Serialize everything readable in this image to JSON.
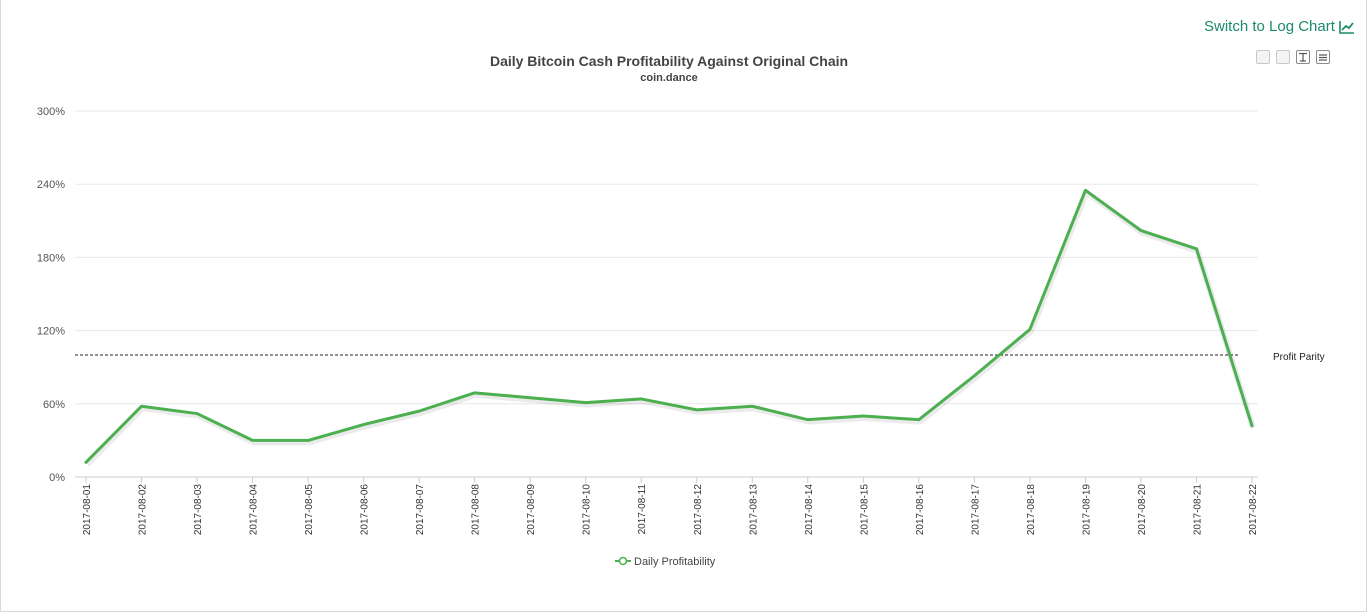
{
  "toolbar": {
    "log_link_label": "Switch to Log Chart",
    "log_icon": "line-chart-icon",
    "buttons": [
      "zoom-icon",
      "reset-zoom-icon",
      "annotate-icon",
      "menu-icon"
    ]
  },
  "chart_data": {
    "type": "line",
    "title": "Daily Bitcoin Cash Profitability Against Original Chain",
    "subtitle": "coin.dance",
    "categories": [
      "2017-08-01",
      "2017-08-02",
      "2017-08-03",
      "2017-08-04",
      "2017-08-05",
      "2017-08-06",
      "2017-08-07",
      "2017-08-08",
      "2017-08-09",
      "2017-08-10",
      "2017-08-11",
      "2017-08-12",
      "2017-08-13",
      "2017-08-14",
      "2017-08-15",
      "2017-08-16",
      "2017-08-17",
      "2017-08-18",
      "2017-08-19",
      "2017-08-20",
      "2017-08-21",
      "2017-08-22"
    ],
    "series": [
      {
        "name": "Daily Profitability",
        "color": "#4caf50",
        "values": [
          12,
          58,
          52,
          30,
          30,
          43,
          54,
          69,
          65,
          61,
          64,
          55,
          58,
          47,
          50,
          47,
          83,
          121,
          235,
          202,
          187,
          42
        ]
      }
    ],
    "ylim": [
      0,
      300
    ],
    "yticks": [
      0,
      60,
      120,
      180,
      240,
      300
    ],
    "ytick_labels": [
      "0%",
      "60%",
      "120%",
      "180%",
      "240%",
      "300%"
    ],
    "reference_line": {
      "value": 100,
      "label": "Profit Parity",
      "style": "dashed"
    },
    "grid": true,
    "legend": "bottom-center"
  }
}
